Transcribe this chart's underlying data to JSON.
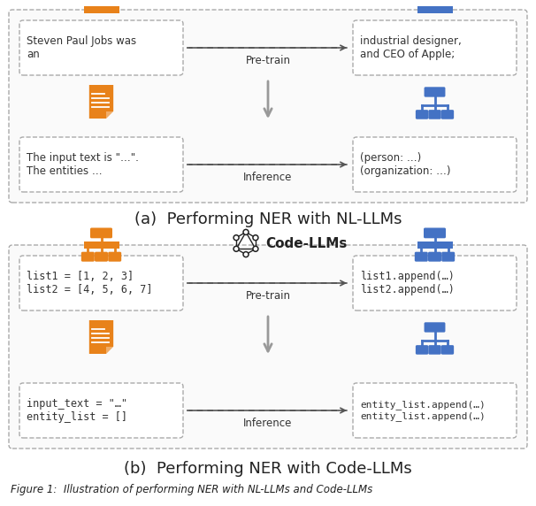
{
  "fig_width": 6.06,
  "fig_height": 5.72,
  "dpi": 100,
  "bg_color": "#ffffff",
  "orange": "#E8821A",
  "blue": "#4472C4",
  "light_blue": "#6699CC",
  "gray_arrow": "#999999",
  "dark_text": "#222222",
  "mono_text": "#333333",
  "box_edge": "#aaaaaa",
  "panel_bg": "#f8f8f8",
  "panel_a": {
    "title": "(a)  Performing NER with NL-LLMs",
    "top_left_text": "Steven Paul Jobs was\nan",
    "bottom_left_text": "The input text is \"…\".\nThe entities …",
    "top_right_text": "industrial designer,\nand CEO of Apple;",
    "bottom_right_text": "(person: …)\n(organization: …)",
    "pre_train_label": "Pre-train",
    "inference_label": "Inference"
  },
  "panel_b": {
    "title": "(b)  Performing NER with Code-LLMs",
    "code_llms_label": "Code-LLMs",
    "top_left_text": "list1 = [1, 2, 3]\nlist2 = [4, 5, 6, 7]",
    "bottom_left_text": "input_text = \"…\"\nentity_list = []",
    "top_right_text": "list1.append(…)\nlist2.append(…)",
    "bottom_right_text": "entity_list.append(…)\nentity_list.append(…)",
    "pre_train_label": "Pre-train",
    "inference_label": "Inference"
  },
  "caption": "Figure 1:  Illustration of performing NER with NL-LLMs and Code-LLMs"
}
